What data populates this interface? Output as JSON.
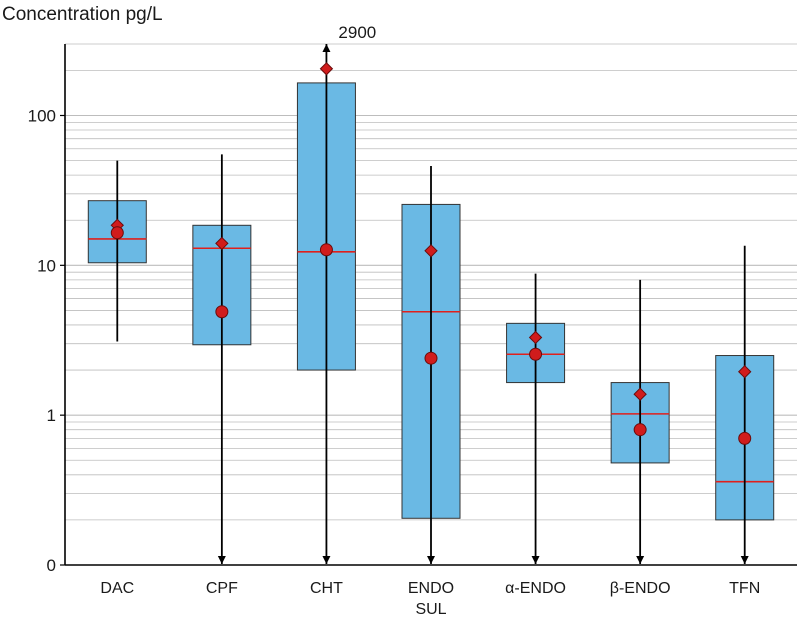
{
  "chart_data": {
    "type": "box",
    "ylabel": "Concentration pg/L",
    "yscale": "log",
    "ylim": [
      0.1,
      300
    ],
    "yticks": [
      {
        "value": 0.1,
        "label": "0"
      },
      {
        "value": 1,
        "label": "1"
      },
      {
        "value": 10,
        "label": "10"
      },
      {
        "value": 100,
        "label": "100"
      }
    ],
    "grid": true,
    "colors": {
      "box_fill": "#6ab9e4",
      "box_stroke": "#333333",
      "median": "#e0201c",
      "marker": "#d01c1c",
      "marker_stroke": "#6a0b0b",
      "whisker": "#000000",
      "grid": "#bdbdbd"
    },
    "categories": [
      {
        "label": "DAC",
        "label2": "",
        "min": 3.1,
        "q1": 10.4,
        "median": 15,
        "q3": 27,
        "max": 50,
        "mean": 18.5,
        "geomean": 16.5,
        "min_arrow": false,
        "max_arrow": false
      },
      {
        "label": "CPF",
        "label2": "",
        "min": 0.1,
        "q1": 2.95,
        "median": 13,
        "q3": 18.5,
        "max": 55,
        "mean": 14,
        "geomean": 4.9,
        "min_arrow": true,
        "max_arrow": false
      },
      {
        "label": "CHT",
        "label2": "",
        "min": 0.1,
        "q1": 2,
        "median": 12.3,
        "q3": 165,
        "max": 300,
        "mean": 205,
        "geomean": 12.7,
        "min_arrow": true,
        "max_arrow": true
      },
      {
        "label": "ENDO",
        "label2": "SUL",
        "min": 0.1,
        "q1": 0.205,
        "median": 4.9,
        "q3": 25.5,
        "max": 46,
        "mean": 12.5,
        "geomean": 2.4,
        "min_arrow": true,
        "max_arrow": false
      },
      {
        "label": "α-ENDO",
        "label2": "",
        "min": 0.1,
        "q1": 1.65,
        "median": 2.55,
        "q3": 4.1,
        "max": 8.8,
        "mean": 3.3,
        "geomean": 2.55,
        "min_arrow": true,
        "max_arrow": false
      },
      {
        "label": "β-ENDO",
        "label2": "",
        "min": 0.1,
        "q1": 0.48,
        "median": 1.02,
        "q3": 1.65,
        "max": 8,
        "mean": 1.38,
        "geomean": 0.8,
        "min_arrow": true,
        "max_arrow": false
      },
      {
        "label": "TFN",
        "label2": "",
        "min": 0.1,
        "q1": 0.2,
        "median": 0.36,
        "q3": 2.5,
        "max": 13.5,
        "mean": 1.95,
        "geomean": 0.7,
        "min_arrow": true,
        "max_arrow": false
      }
    ],
    "annotations": [
      {
        "text": "2900",
        "category": "CHT"
      }
    ]
  }
}
